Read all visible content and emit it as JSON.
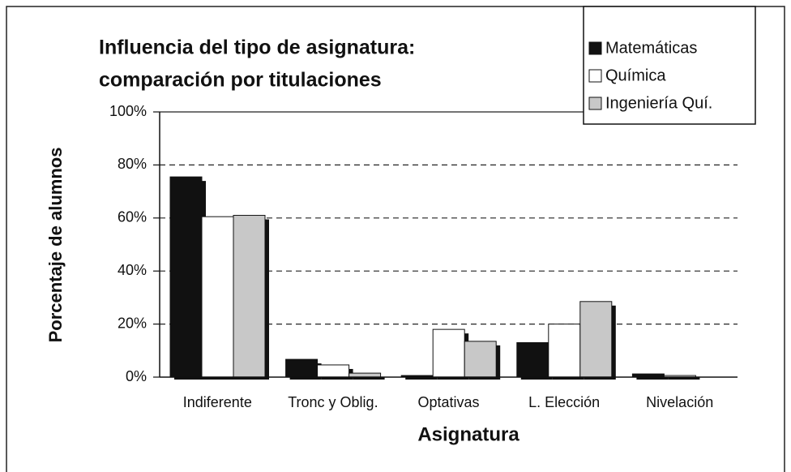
{
  "chart_data": {
    "type": "bar",
    "title": [
      "Influencia del tipo de asignatura:",
      "comparación por titulaciones"
    ],
    "x_label": "Asignatura",
    "y_label": "Porcentaje de alumnos",
    "categories": [
      "Indiferente",
      "Tronc y Oblig.",
      "Optativas",
      "L. Elección",
      "Nivelación"
    ],
    "series": [
      {
        "name": "Matemáticas",
        "color": "#111111",
        "values": [
          75.5,
          6.7,
          0.6,
          13,
          1.2
        ]
      },
      {
        "name": "Química",
        "color": "#ffffff",
        "values": [
          60.5,
          4.6,
          18,
          20,
          0.6
        ]
      },
      {
        "name": "Ingeniería Quí.",
        "color": "#c8c8c8",
        "values": [
          61,
          1.5,
          13.5,
          28.5,
          0
        ]
      }
    ],
    "ylim": [
      0,
      100
    ],
    "yticks": [
      {
        "value": 0,
        "label": "0%"
      },
      {
        "value": 20,
        "label": "20%"
      },
      {
        "value": 40,
        "label": "40%"
      },
      {
        "value": 60,
        "label": "60%"
      },
      {
        "value": 80,
        "label": "80%"
      },
      {
        "value": 100,
        "label": "100%"
      }
    ],
    "grid": true,
    "legend": "top-right"
  }
}
